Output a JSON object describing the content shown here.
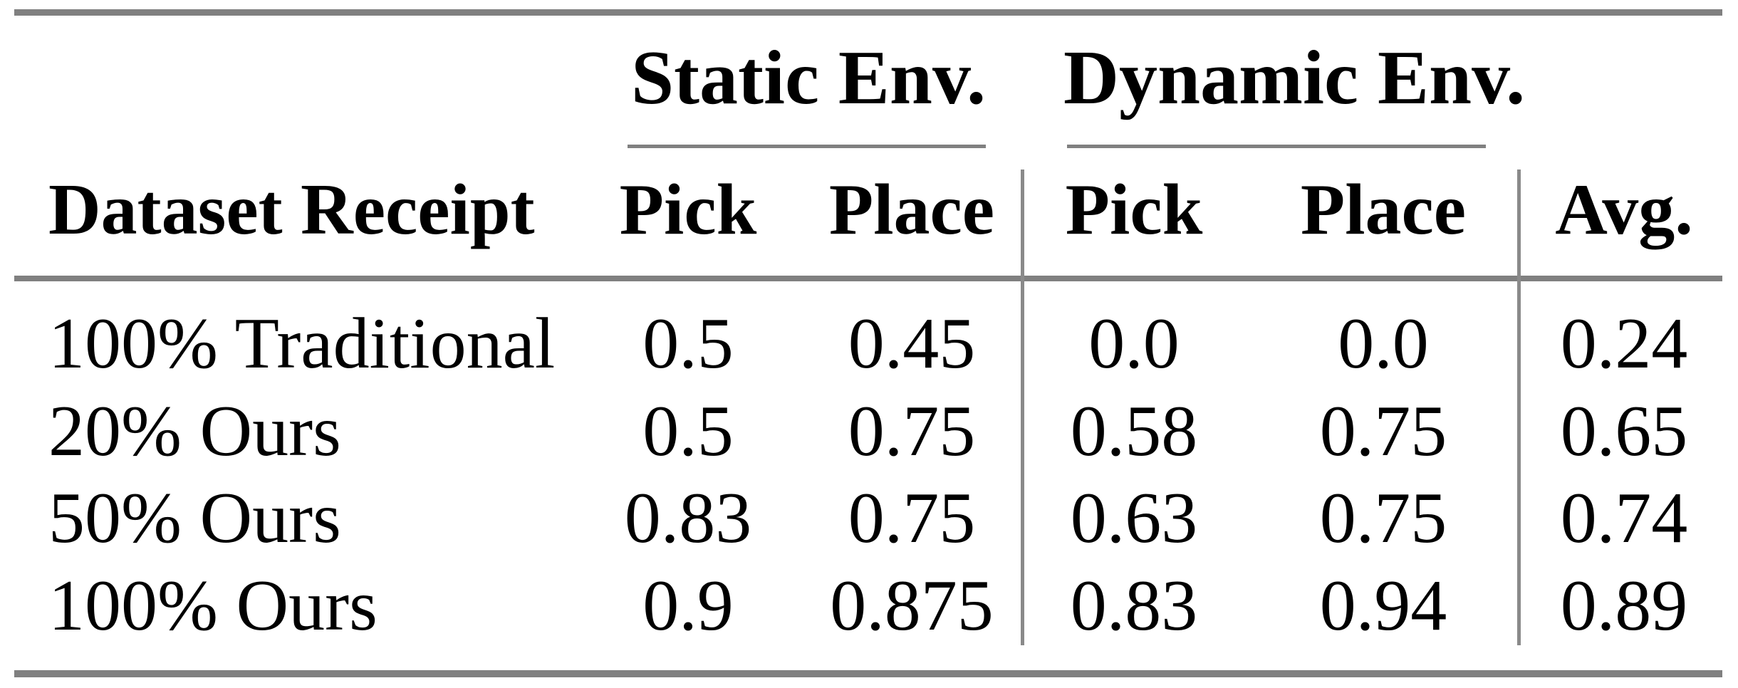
{
  "table": {
    "row_header_label": "Dataset Receipt",
    "column_groups": [
      {
        "label": "Static Env.",
        "columns": [
          "Pick",
          "Place"
        ]
      },
      {
        "label": "Dynamic Env.",
        "columns": [
          "Pick",
          "Place"
        ]
      }
    ],
    "avg_label": "Avg.",
    "rows": [
      {
        "label": "100% Traditional",
        "static_pick": "0.5",
        "static_place": "0.45",
        "dynamic_pick": "0.0",
        "dynamic_place": "0.0",
        "avg": "0.24"
      },
      {
        "label": "20% Ours",
        "static_pick": "0.5",
        "static_place": "0.75",
        "dynamic_pick": "0.58",
        "dynamic_place": "0.75",
        "avg": "0.65"
      },
      {
        "label": "50% Ours",
        "static_pick": "0.83",
        "static_place": "0.75",
        "dynamic_pick": "0.63",
        "dynamic_place": "0.75",
        "avg": "0.74"
      },
      {
        "label": "100% Ours",
        "static_pick": "0.9",
        "static_place": "0.875",
        "dynamic_pick": "0.83",
        "dynamic_place": "0.94",
        "avg": "0.89"
      }
    ],
    "colors": {
      "rule_gray": "#808080",
      "divider_gray": "#8a8a8a",
      "text": "#000000",
      "background": "#ffffff"
    }
  }
}
